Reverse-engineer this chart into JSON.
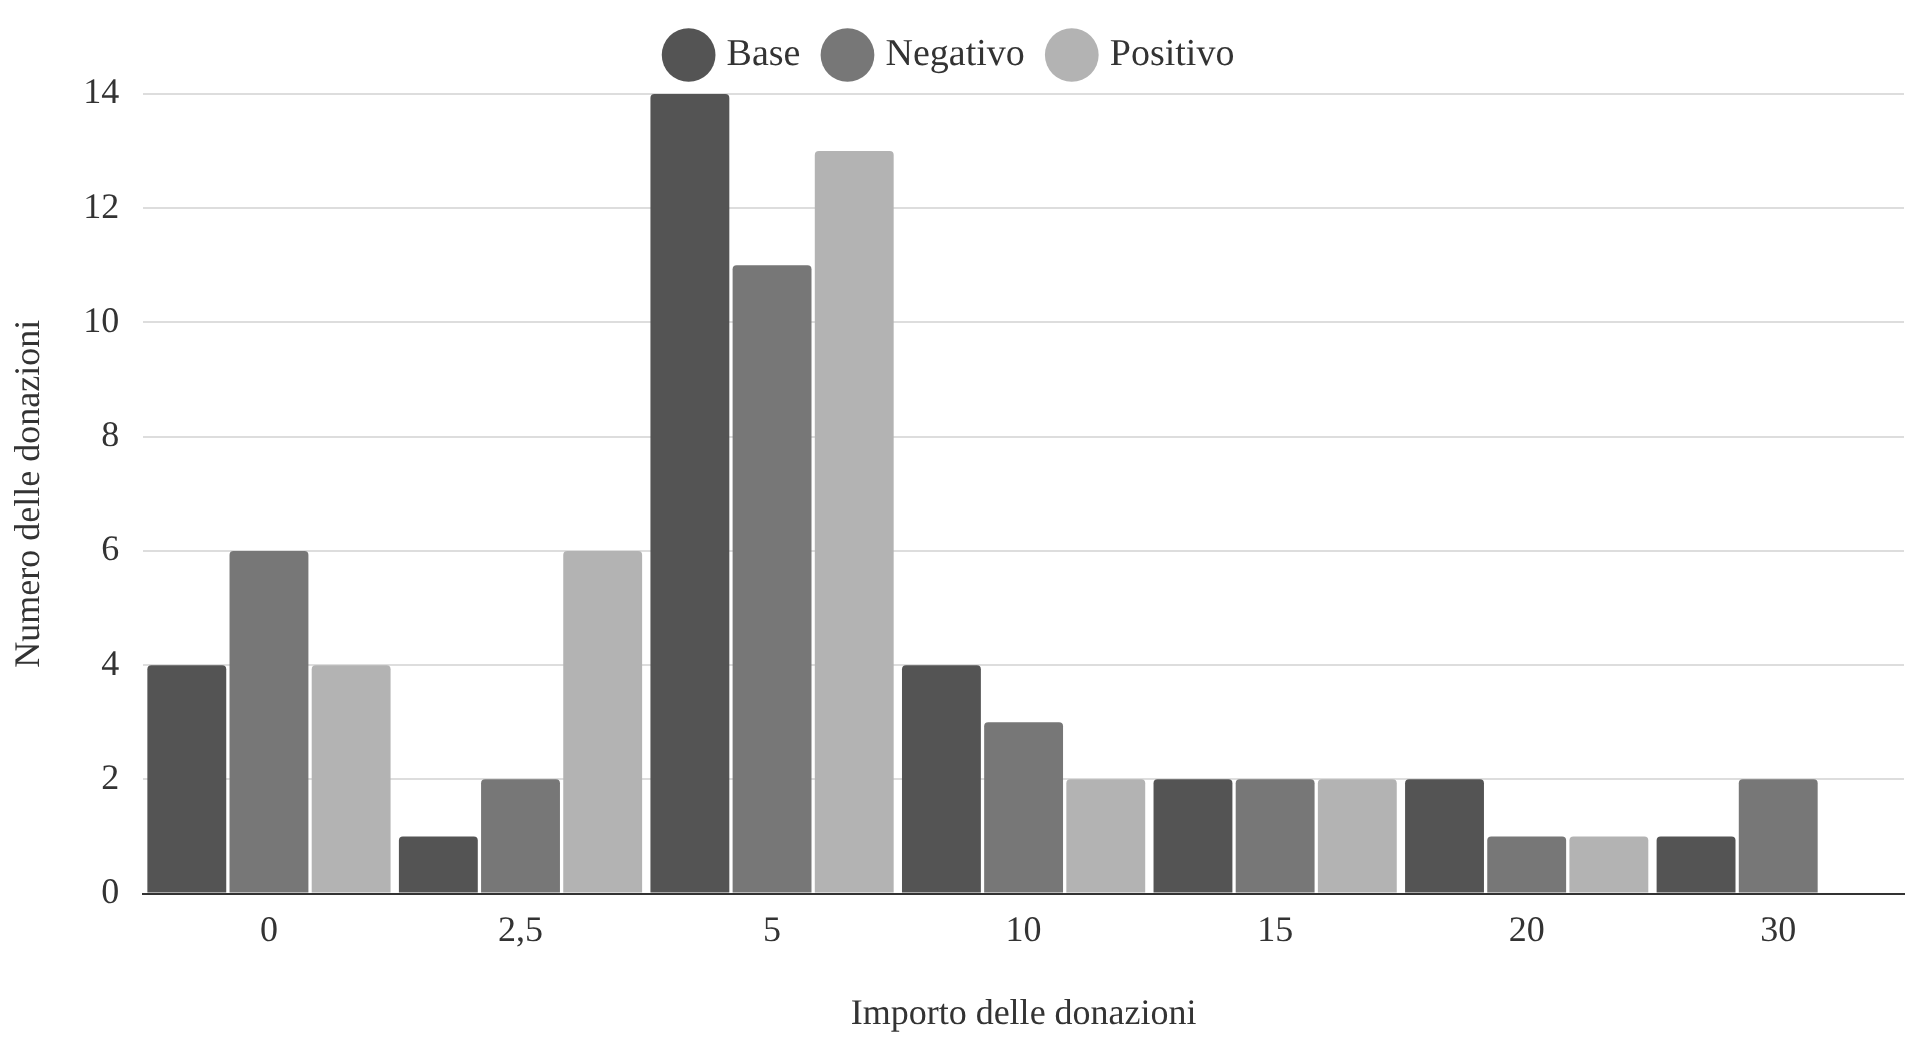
{
  "chart_data": {
    "type": "bar",
    "xlabel": "Importo delle donazioni",
    "ylabel": "Numero delle donazioni",
    "categories": [
      "0",
      "2,5",
      "5",
      "10",
      "15",
      "20",
      "30"
    ],
    "series": [
      {
        "name": "Base",
        "color": "#545454",
        "values": [
          4,
          1,
          14,
          4,
          2,
          2,
          1
        ]
      },
      {
        "name": "Negativo",
        "color": "#777777",
        "values": [
          6,
          2,
          11,
          3,
          2,
          1,
          2
        ]
      },
      {
        "name": "Positivo",
        "color": "#b3b3b3",
        "values": [
          4,
          6,
          13,
          2,
          2,
          1,
          0
        ]
      }
    ],
    "ylim": [
      0,
      14
    ],
    "yticks": [
      0,
      2,
      4,
      6,
      8,
      10,
      12,
      14
    ],
    "grid": "y",
    "legend": "top"
  }
}
